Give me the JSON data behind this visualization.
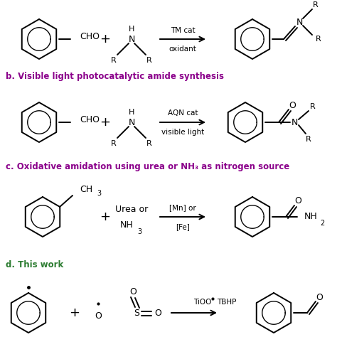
{
  "bg_color": "#ffffff",
  "text_color_black": "#000000",
  "text_color_purple": "#8B008B",
  "text_color_green": "#2D7D32",
  "section_b_label": "b. Visible light photocatalytic amide synthesis",
  "section_c_label": "c. Oxidative amidation using urea or NH₃ as nitrogen source",
  "section_d_label": "d. This work",
  "fig_width": 4.74,
  "fig_height": 4.74,
  "dpi": 100
}
